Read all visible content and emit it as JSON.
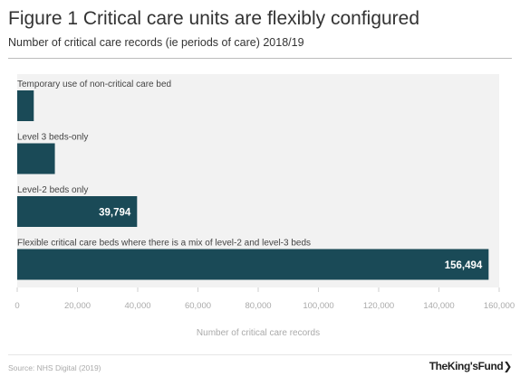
{
  "title": "Figure 1 Critical care units are flexibly configured",
  "subtitle": "Number of critical care records (ie periods of care) 2018/19",
  "source": "Source: NHS Digital (2019)",
  "logo": "TheKing'sFund",
  "logo_chevron": "❯",
  "colors": {
    "bar": "#1a4a57",
    "plot_bg": "#f2f2f2",
    "label_on_bar": "#ffffff"
  },
  "chart_data": {
    "type": "bar",
    "orientation": "horizontal",
    "categories": [
      "Temporary use of non-critical care bed",
      "Level 3 beds-only",
      "Level-2 beds only",
      "Flexible critical care beds where there is a mix of level-2 and level-3 beds"
    ],
    "values": [
      5500,
      12500,
      39794,
      156494
    ],
    "data_labels": [
      "",
      "",
      "39,794",
      "156,494"
    ],
    "xlabel": "Number of critical care records",
    "ylabel": "",
    "xlim": [
      0,
      160000
    ],
    "xticks": [
      0,
      20000,
      40000,
      60000,
      80000,
      100000,
      120000,
      140000,
      160000
    ],
    "xtick_labels": [
      "0",
      "20,000",
      "40,000",
      "60,000",
      "80,000",
      "100,000",
      "120,000",
      "140,000",
      "160,000"
    ],
    "grid": false
  }
}
